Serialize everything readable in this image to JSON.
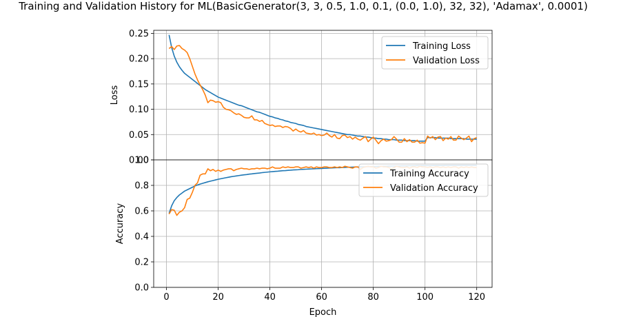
{
  "chart_data": [
    {
      "type": "line",
      "title": "Training and Validation History for ML(BasicGenerator(3, 3, 0.5, 1.0, 0.1, (0.0, 1.0), 32, 32), 'Adamax', 0.0001)",
      "xlabel": "",
      "ylabel": "Loss",
      "xlim": [
        -4.95,
        125.95
      ],
      "ylim": [
        0.0,
        0.256
      ],
      "xticks": [
        "0",
        "20",
        "40",
        "60",
        "80",
        "100",
        "120"
      ],
      "yticks": [
        "0.00",
        "0.05",
        "0.10",
        "0.15",
        "0.20",
        "0.25"
      ],
      "grid": true,
      "legend_position": "top-right",
      "x": [
        1,
        2,
        3,
        4,
        5,
        6,
        7,
        8,
        9,
        10,
        11,
        12,
        13,
        14,
        15,
        16,
        17,
        18,
        19,
        20,
        21,
        22,
        23,
        24,
        25,
        26,
        27,
        28,
        29,
        30,
        31,
        32,
        33,
        34,
        35,
        36,
        37,
        38,
        39,
        40,
        41,
        42,
        43,
        44,
        45,
        46,
        47,
        48,
        49,
        50,
        51,
        52,
        53,
        54,
        55,
        56,
        57,
        58,
        59,
        60,
        61,
        62,
        63,
        64,
        65,
        66,
        67,
        68,
        69,
        70,
        71,
        72,
        73,
        74,
        75,
        76,
        77,
        78,
        79,
        80,
        81,
        82,
        83,
        84,
        85,
        86,
        87,
        88,
        89,
        90,
        91,
        92,
        93,
        94,
        95,
        96,
        97,
        98,
        99,
        100,
        101,
        102,
        103,
        104,
        105,
        106,
        107,
        108,
        109,
        110,
        111,
        112,
        113,
        114,
        115,
        116,
        117,
        118,
        119,
        120
      ],
      "series": [
        {
          "name": "Training Loss",
          "color": "#1f77b4",
          "values": [
            0.247,
            0.222,
            0.205,
            0.193,
            0.184,
            0.177,
            0.171,
            0.167,
            0.163,
            0.159,
            0.155,
            0.151,
            0.147,
            0.143,
            0.139,
            0.136,
            0.133,
            0.13,
            0.127,
            0.124,
            0.122,
            0.12,
            0.118,
            0.116,
            0.114,
            0.112,
            0.11,
            0.108,
            0.107,
            0.105,
            0.103,
            0.101,
            0.099,
            0.097,
            0.095,
            0.094,
            0.092,
            0.09,
            0.088,
            0.086,
            0.085,
            0.083,
            0.082,
            0.08,
            0.079,
            0.077,
            0.076,
            0.074,
            0.073,
            0.072,
            0.07,
            0.069,
            0.068,
            0.066,
            0.065,
            0.064,
            0.063,
            0.062,
            0.061,
            0.06,
            0.059,
            0.058,
            0.057,
            0.056,
            0.055,
            0.054,
            0.053,
            0.052,
            0.051,
            0.05,
            0.05,
            0.049,
            0.048,
            0.047,
            0.047,
            0.046,
            0.045,
            0.045,
            0.044,
            0.043,
            0.043,
            0.042,
            0.042,
            0.041,
            0.041,
            0.04,
            0.04,
            0.04,
            0.039,
            0.039,
            0.039,
            0.038,
            0.038,
            0.038,
            0.038,
            0.038,
            0.037,
            0.037,
            0.037,
            0.037,
            0.044,
            0.044,
            0.044,
            0.044,
            0.043,
            0.043,
            0.043,
            0.043,
            0.043,
            0.042,
            0.042,
            0.042,
            0.042,
            0.042,
            0.042,
            0.041,
            0.041,
            0.041,
            0.041,
            0.041
          ]
        },
        {
          "name": "Validation Loss",
          "color": "#ff7f0e",
          "values": [
            0.22,
            0.224,
            0.218,
            0.225,
            0.226,
            0.22,
            0.217,
            0.212,
            0.2,
            0.185,
            0.17,
            0.158,
            0.148,
            0.139,
            0.128,
            0.113,
            0.118,
            0.117,
            0.114,
            0.115,
            0.113,
            0.104,
            0.1,
            0.099,
            0.097,
            0.093,
            0.09,
            0.091,
            0.088,
            0.084,
            0.083,
            0.083,
            0.087,
            0.079,
            0.079,
            0.076,
            0.078,
            0.072,
            0.07,
            0.068,
            0.069,
            0.066,
            0.067,
            0.067,
            0.064,
            0.066,
            0.065,
            0.062,
            0.057,
            0.061,
            0.057,
            0.055,
            0.058,
            0.053,
            0.052,
            0.051,
            0.053,
            0.049,
            0.05,
            0.048,
            0.049,
            0.053,
            0.048,
            0.045,
            0.05,
            0.043,
            0.042,
            0.048,
            0.049,
            0.044,
            0.046,
            0.041,
            0.045,
            0.041,
            0.039,
            0.043,
            0.046,
            0.036,
            0.041,
            0.045,
            0.039,
            0.032,
            0.038,
            0.041,
            0.037,
            0.038,
            0.04,
            0.046,
            0.041,
            0.035,
            0.035,
            0.042,
            0.036,
            0.04,
            0.035,
            0.035,
            0.039,
            0.033,
            0.034,
            0.033,
            0.047,
            0.043,
            0.046,
            0.04,
            0.045,
            0.046,
            0.038,
            0.043,
            0.041,
            0.046,
            0.039,
            0.039,
            0.047,
            0.043,
            0.04,
            0.043,
            0.047,
            0.036,
            0.042,
            0.044
          ]
        }
      ]
    },
    {
      "type": "line",
      "title": "",
      "xlabel": "Epoch",
      "ylabel": "Accuracy",
      "xlim": [
        -4.95,
        125.95
      ],
      "ylim": [
        0.0,
        1.0
      ],
      "xticks": [
        "0",
        "20",
        "40",
        "60",
        "80",
        "100",
        "120"
      ],
      "yticks": [
        "0.0",
        "0.2",
        "0.4",
        "0.6",
        "0.8",
        "1.0"
      ],
      "grid": true,
      "legend_position": "top-right",
      "x": [
        1,
        2,
        3,
        4,
        5,
        6,
        7,
        8,
        9,
        10,
        11,
        12,
        13,
        14,
        15,
        16,
        17,
        18,
        19,
        20,
        21,
        22,
        23,
        24,
        25,
        26,
        27,
        28,
        29,
        30,
        31,
        32,
        33,
        34,
        35,
        36,
        37,
        38,
        39,
        40,
        41,
        42,
        43,
        44,
        45,
        46,
        47,
        48,
        49,
        50,
        51,
        52,
        53,
        54,
        55,
        56,
        57,
        58,
        59,
        60,
        61,
        62,
        63,
        64,
        65,
        66,
        67,
        68,
        69,
        70,
        71,
        72,
        73,
        74,
        75,
        76,
        77,
        78,
        79,
        80,
        81,
        82,
        83,
        84,
        85,
        86,
        87,
        88,
        89,
        90,
        91,
        92,
        93,
        94,
        95,
        96,
        97,
        98,
        99,
        100,
        101,
        102,
        103,
        104,
        105,
        106,
        107,
        108,
        109,
        110,
        111,
        112,
        113,
        114,
        115,
        116,
        117,
        118,
        119,
        120
      ],
      "series": [
        {
          "name": "Training Accuracy",
          "color": "#1f77b4",
          "values": [
            0.58,
            0.64,
            0.68,
            0.705,
            0.725,
            0.74,
            0.755,
            0.765,
            0.775,
            0.785,
            0.795,
            0.803,
            0.81,
            0.816,
            0.822,
            0.828,
            0.833,
            0.838,
            0.843,
            0.848,
            0.852,
            0.856,
            0.86,
            0.864,
            0.868,
            0.871,
            0.874,
            0.877,
            0.88,
            0.883,
            0.885,
            0.888,
            0.89,
            0.893,
            0.895,
            0.897,
            0.9,
            0.902,
            0.904,
            0.906,
            0.908,
            0.91,
            0.911,
            0.913,
            0.915,
            0.916,
            0.918,
            0.919,
            0.921,
            0.922,
            0.923,
            0.925,
            0.926,
            0.927,
            0.928,
            0.929,
            0.93,
            0.931,
            0.932,
            0.933,
            0.934,
            0.935,
            0.936,
            0.937,
            0.938,
            0.939,
            0.939,
            0.94,
            0.941,
            0.942,
            0.942,
            0.943,
            0.944,
            0.944,
            0.945,
            0.946,
            0.946,
            0.947,
            0.947,
            0.948,
            0.948,
            0.949,
            0.949,
            0.95,
            0.95,
            0.951,
            0.951,
            0.952,
            0.952,
            0.952,
            0.953,
            0.953,
            0.953,
            0.954,
            0.954,
            0.954,
            0.955,
            0.955,
            0.955,
            0.955,
            0.955,
            0.955,
            0.956,
            0.956,
            0.956,
            0.956,
            0.956,
            0.957,
            0.957,
            0.957,
            0.957,
            0.957,
            0.957,
            0.958,
            0.958,
            0.958,
            0.958,
            0.958,
            0.958,
            0.958
          ]
        },
        {
          "name": "Validation Accuracy",
          "color": "#ff7f0e",
          "values": [
            0.575,
            0.61,
            0.605,
            0.565,
            0.59,
            0.6,
            0.625,
            0.69,
            0.7,
            0.745,
            0.8,
            0.82,
            0.88,
            0.89,
            0.89,
            0.93,
            0.915,
            0.925,
            0.91,
            0.92,
            0.91,
            0.92,
            0.925,
            0.93,
            0.93,
            0.915,
            0.925,
            0.93,
            0.935,
            0.93,
            0.93,
            0.925,
            0.93,
            0.93,
            0.935,
            0.93,
            0.935,
            0.935,
            0.93,
            0.935,
            0.945,
            0.935,
            0.935,
            0.935,
            0.945,
            0.94,
            0.945,
            0.94,
            0.94,
            0.945,
            0.945,
            0.935,
            0.94,
            0.945,
            0.94,
            0.945,
            0.935,
            0.945,
            0.94,
            0.94,
            0.945,
            0.945,
            0.94,
            0.94,
            0.945,
            0.94,
            0.945,
            0.94,
            0.95,
            0.945,
            0.94,
            0.935,
            0.945,
            0.945,
            0.925,
            0.94,
            0.945,
            0.95,
            0.945,
            0.945,
            0.935,
            0.94,
            0.95,
            0.945,
            0.945,
            0.94,
            0.93,
            0.94,
            0.95,
            0.945,
            0.94,
            0.94,
            0.945,
            0.935,
            0.945,
            0.945,
            0.94,
            0.95,
            0.945,
            0.945,
            0.94,
            0.945,
            0.94,
            0.945,
            0.945,
            0.94,
            0.945,
            0.94,
            0.945,
            0.94,
            0.945,
            0.945,
            0.935,
            0.945,
            0.94,
            0.945,
            0.94,
            0.945,
            0.94,
            0.94
          ]
        }
      ]
    }
  ]
}
